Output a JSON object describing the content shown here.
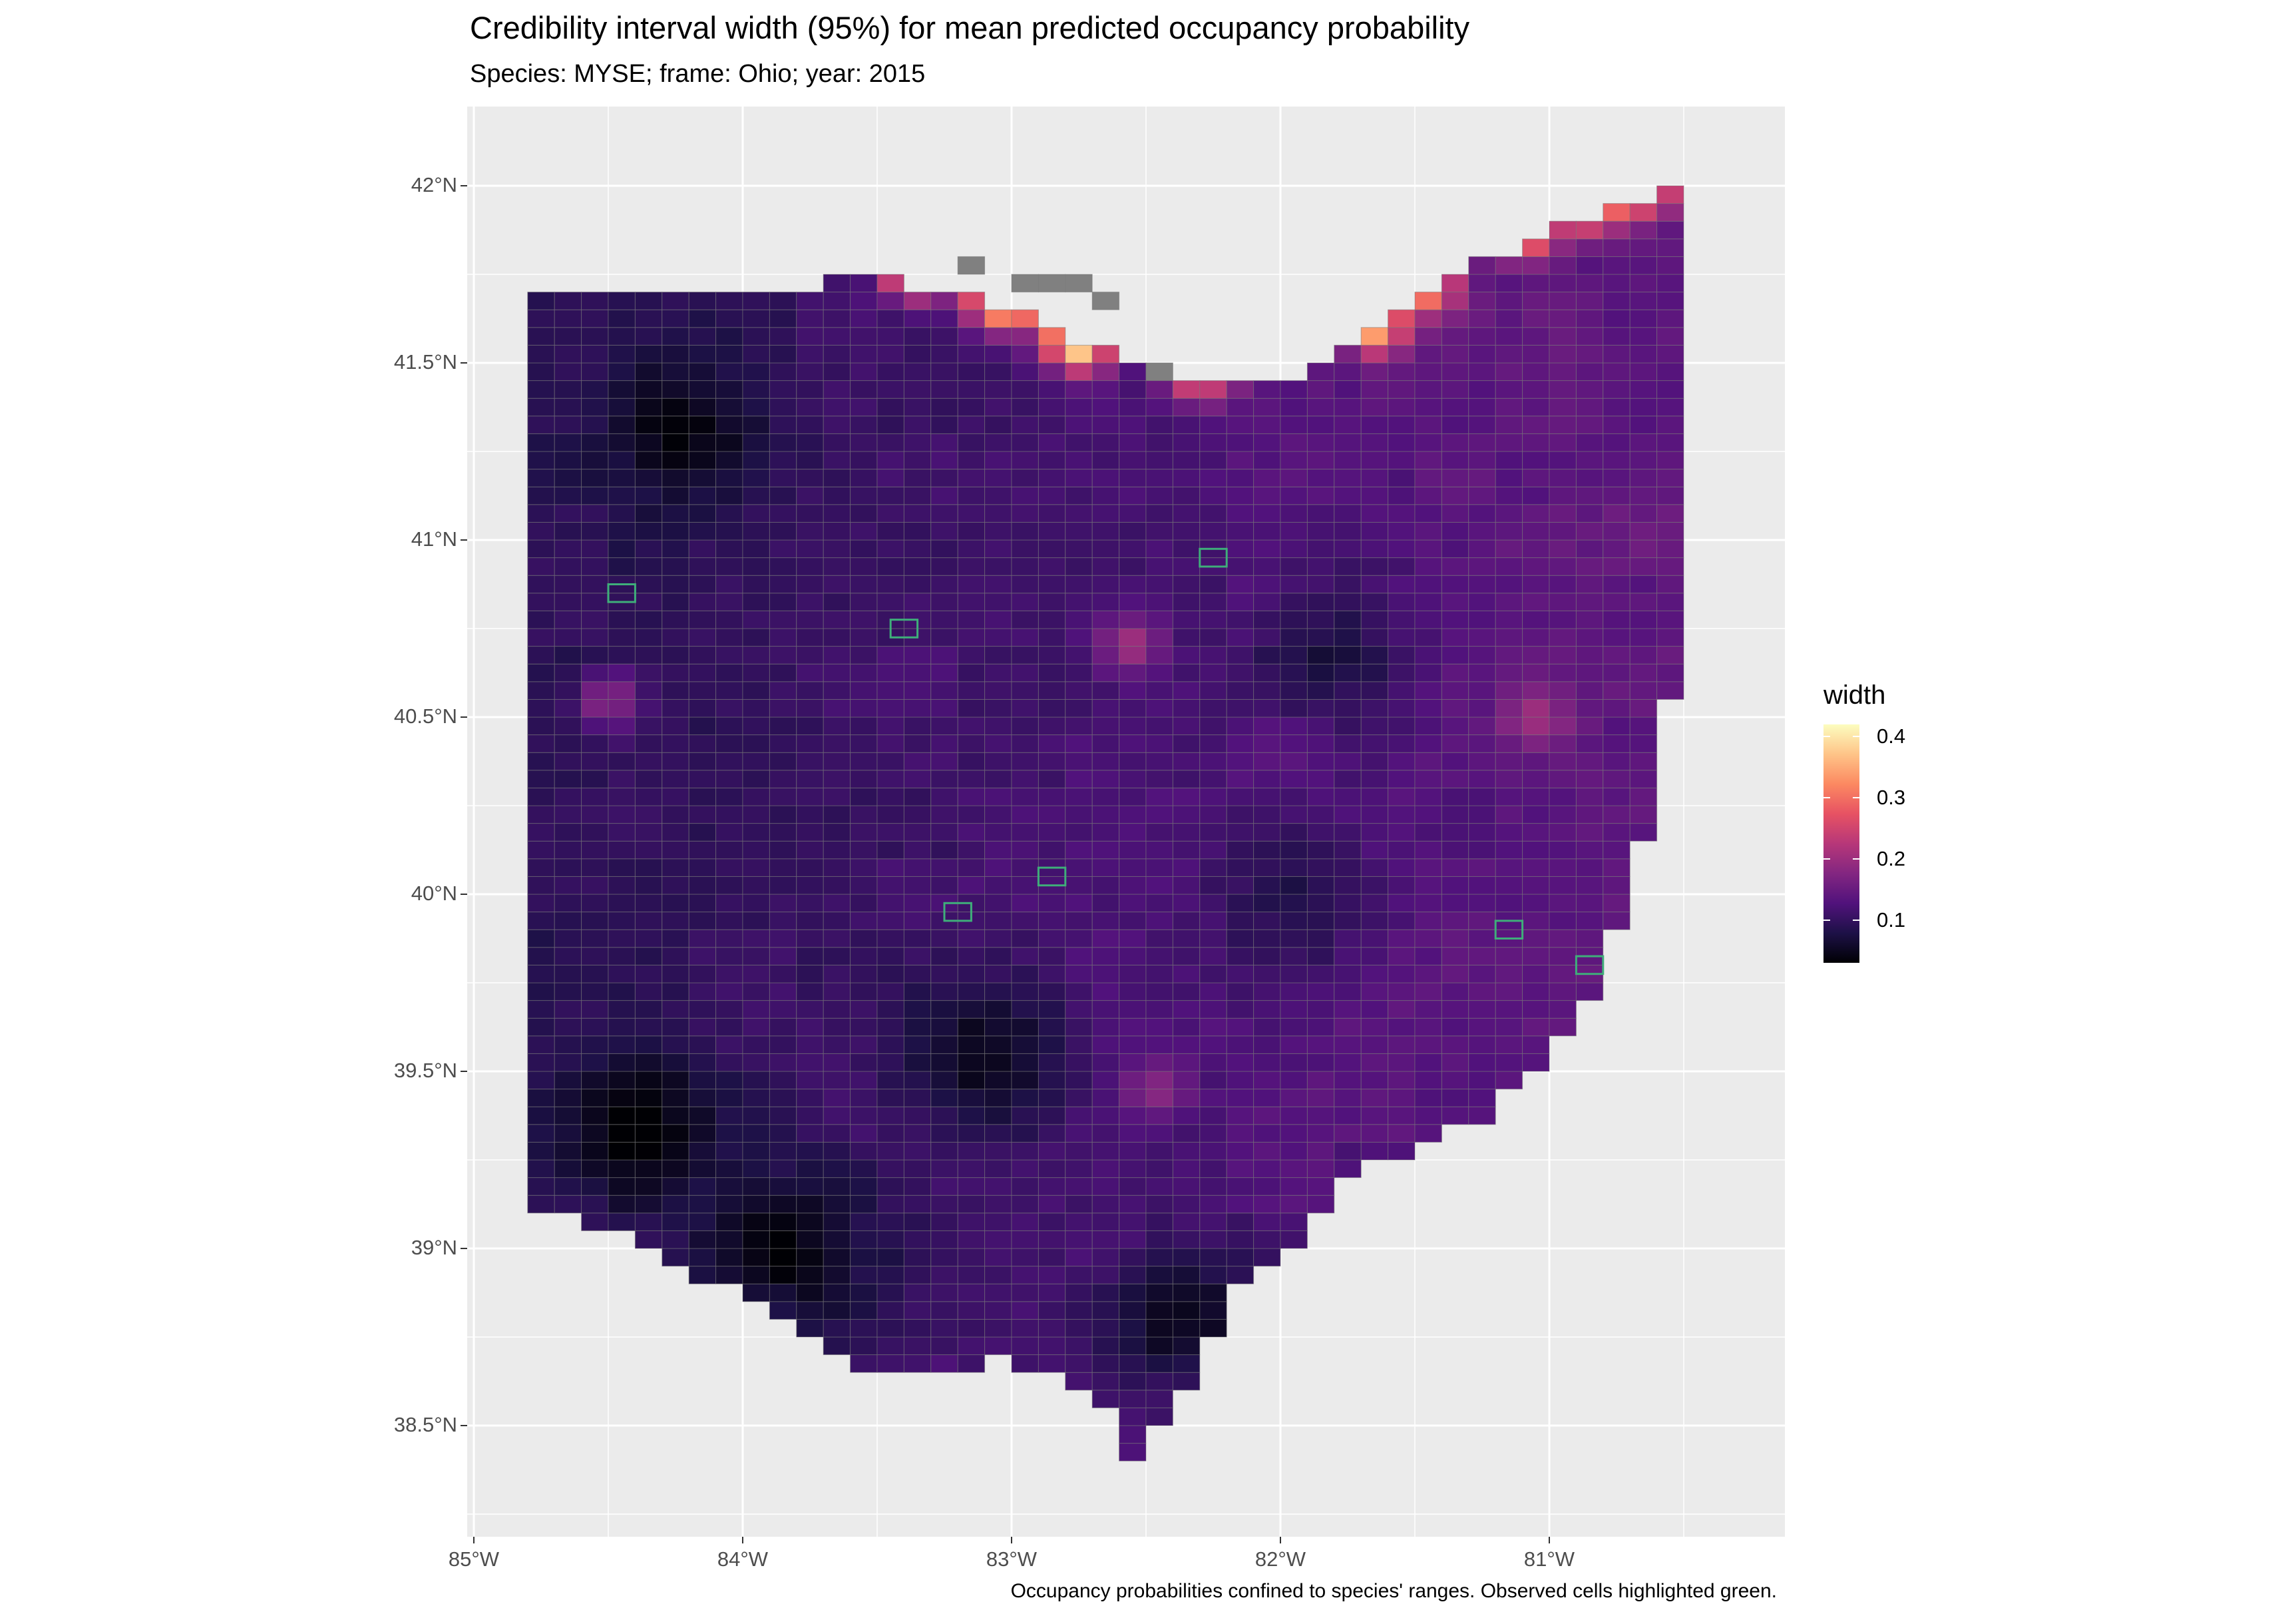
{
  "title": "Credibility interval width (95%) for mean predicted occupancy probability",
  "subtitle": "Species: MYSE; frame: Ohio; year: 2015",
  "caption": "Occupancy probabilities confined to species' ranges. Observed cells highlighted green.",
  "axes": {
    "y_labels": [
      "42°N",
      "41.5°N",
      "41°N",
      "40.5°N",
      "40°N",
      "39.5°N",
      "39°N",
      "38.5°N"
    ],
    "x_labels": [
      "85°W",
      "84°W",
      "83°W",
      "82°W",
      "81°W"
    ]
  },
  "legend": {
    "title": "width",
    "labels": [
      "0.4",
      "0.3",
      "0.2",
      "0.1"
    ],
    "values": [
      0.4,
      0.3,
      0.2,
      0.1
    ],
    "min": 0.03,
    "max": 0.42,
    "palette": [
      "#000004",
      "#1d1147",
      "#51127c",
      "#832681",
      "#b73779",
      "#e75263",
      "#fc8961",
      "#fec488",
      "#fcfdbf"
    ],
    "no_data_color": "#808080",
    "observed_outline_color": "#3fae7a"
  },
  "grid": {
    "lon_range": [
      -85.0,
      -80.35
    ],
    "lat_range": [
      38.2,
      42.3
    ],
    "cell_lon_step": 0.1,
    "cell_lat_step": 0.05
  },
  "ohio_boundary": [
    [
      -84.82,
      41.7
    ],
    [
      -83.45,
      41.73
    ],
    [
      -83.1,
      41.68
    ],
    [
      -82.7,
      41.55
    ],
    [
      -82.4,
      41.45
    ],
    [
      -82.2,
      41.47
    ],
    [
      -81.9,
      41.45
    ],
    [
      -81.7,
      41.58
    ],
    [
      -81.25,
      41.78
    ],
    [
      -80.9,
      41.9
    ],
    [
      -80.52,
      42.0
    ],
    [
      -80.52,
      40.64
    ],
    [
      -80.62,
      40.4
    ],
    [
      -80.66,
      40.1
    ],
    [
      -80.85,
      39.7
    ],
    [
      -81.2,
      39.38
    ],
    [
      -81.45,
      39.3
    ],
    [
      -81.75,
      39.2
    ],
    [
      -81.95,
      38.98
    ],
    [
      -82.15,
      38.88
    ],
    [
      -82.3,
      38.65
    ],
    [
      -82.55,
      38.4
    ],
    [
      -82.7,
      38.6
    ],
    [
      -83.05,
      38.68
    ],
    [
      -83.3,
      38.62
    ],
    [
      -83.7,
      38.7
    ],
    [
      -84.1,
      38.9
    ],
    [
      -84.45,
      39.05
    ],
    [
      -84.82,
      39.1
    ]
  ],
  "hotspots": [
    {
      "lon": -83.35,
      "lat": 41.76,
      "value": 0.42
    },
    {
      "lon": -83.05,
      "lat": 41.68,
      "value": 0.41
    },
    {
      "lon": -82.85,
      "lat": 41.68,
      "value": 0.38
    },
    {
      "lon": -82.75,
      "lat": 41.55,
      "value": 0.4
    },
    {
      "lon": -82.3,
      "lat": 41.47,
      "value": 0.3
    },
    {
      "lon": -82.15,
      "lat": 41.57,
      "value": 0.39
    },
    {
      "lon": -81.65,
      "lat": 41.6,
      "value": 0.36
    },
    {
      "lon": -81.45,
      "lat": 41.72,
      "value": 0.32
    },
    {
      "lon": -81.1,
      "lat": 41.88,
      "value": 0.37
    },
    {
      "lon": -80.85,
      "lat": 41.95,
      "value": 0.35
    },
    {
      "lon": -80.65,
      "lat": 42.0,
      "value": 0.33
    },
    {
      "lon": -82.55,
      "lat": 40.7,
      "value": 0.2
    },
    {
      "lon": -82.45,
      "lat": 39.45,
      "value": 0.19
    },
    {
      "lon": -81.05,
      "lat": 40.5,
      "value": 0.19
    },
    {
      "lon": -84.5,
      "lat": 40.55,
      "value": 0.22
    }
  ],
  "coldspots": [
    {
      "lon": -84.2,
      "lat": 41.3,
      "value": 0.05
    },
    {
      "lon": -83.8,
      "lat": 39.0,
      "value": 0.04
    },
    {
      "lon": -83.1,
      "lat": 39.55,
      "value": 0.05
    },
    {
      "lon": -82.35,
      "lat": 38.8,
      "value": 0.04
    },
    {
      "lon": -81.8,
      "lat": 40.7,
      "value": 0.06
    },
    {
      "lon": -81.95,
      "lat": 40.0,
      "value": 0.06
    },
    {
      "lon": -84.4,
      "lat": 39.35,
      "value": 0.04
    }
  ],
  "no_data_cells": [
    {
      "lon": -83.15,
      "lat": 41.76
    },
    {
      "lon": -82.95,
      "lat": 41.72
    },
    {
      "lon": -82.85,
      "lat": 41.72
    },
    {
      "lon": -82.75,
      "lat": 41.72
    },
    {
      "lon": -82.65,
      "lat": 41.68
    },
    {
      "lon": -82.45,
      "lat": 41.47
    }
  ],
  "observed_cells": [
    {
      "lon": -84.45,
      "lat": 40.85
    },
    {
      "lon": -83.4,
      "lat": 40.75
    },
    {
      "lon": -82.25,
      "lat": 40.95
    },
    {
      "lon": -82.85,
      "lat": 40.05
    },
    {
      "lon": -83.2,
      "lat": 39.95
    },
    {
      "lon": -81.15,
      "lat": 39.9
    },
    {
      "lon": -80.85,
      "lat": 39.8
    }
  ]
}
